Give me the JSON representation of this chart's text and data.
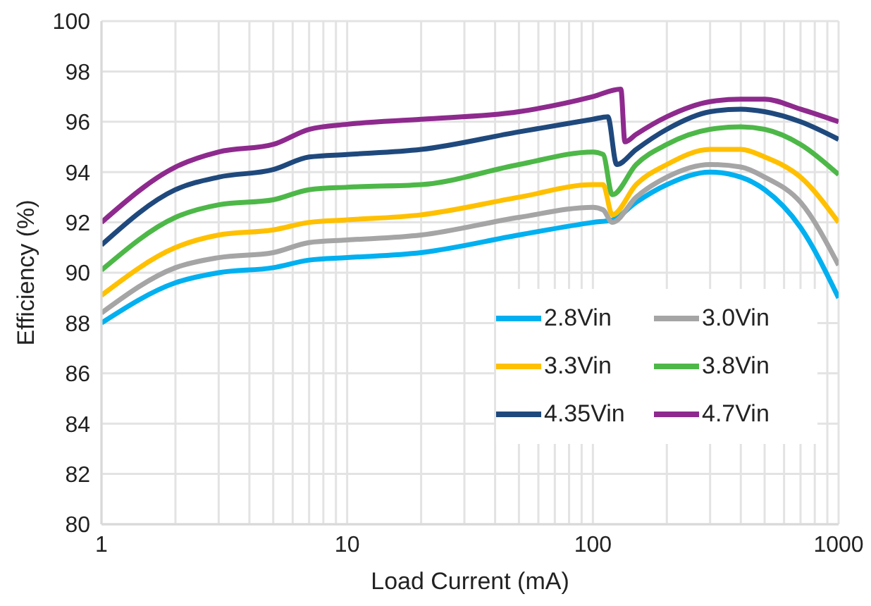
{
  "chart_data": {
    "type": "line",
    "xlabel": "Load Current (mA)",
    "ylabel": "Efficiency (%)",
    "log": "x",
    "grid": true,
    "legend": "bottom right",
    "marker": "none",
    "line_style": "solid",
    "xlim": [
      1,
      1000
    ],
    "ylim": [
      80,
      100
    ],
    "xticks": [
      1,
      {
        "value": 2,
        "label": null
      },
      {
        "value": 3,
        "label": null
      },
      {
        "value": 4,
        "label": null
      },
      {
        "value": 5,
        "label": null
      },
      {
        "value": 6,
        "label": null
      },
      {
        "value": 7,
        "label": null
      },
      {
        "value": 8,
        "label": null
      },
      {
        "value": 9,
        "label": null
      },
      10,
      {
        "value": 20,
        "label": null
      },
      {
        "value": 30,
        "label": null
      },
      {
        "value": 40,
        "label": null
      },
      {
        "value": 50,
        "label": null
      },
      {
        "value": 60,
        "label": null
      },
      {
        "value": 70,
        "label": null
      },
      {
        "value": 80,
        "label": null
      },
      {
        "value": 90,
        "label": null
      },
      100,
      {
        "value": 200,
        "label": null
      },
      {
        "value": 300,
        "label": null
      },
      {
        "value": 400,
        "label": null
      },
      {
        "value": 500,
        "label": null
      },
      {
        "value": 600,
        "label": null
      },
      {
        "value": 700,
        "label": null
      },
      {
        "value": 800,
        "label": null
      },
      {
        "value": 900,
        "label": null
      },
      1000
    ],
    "yticks": [
      80,
      82,
      84,
      86,
      88,
      90,
      92,
      94,
      96,
      98,
      100
    ],
    "series": [
      {
        "name": "2.8Vin",
        "color": "#00b0f0",
        "x": [
          1,
          2,
          3,
          5,
          7,
          10,
          20,
          50,
          100,
          120,
          150,
          200,
          300,
          400,
          500,
          700,
          1000
        ],
        "values": [
          88.0,
          89.6,
          90.0,
          90.2,
          90.5,
          90.6,
          90.8,
          91.5,
          92.0,
          92.1,
          92.8,
          93.5,
          94.0,
          93.8,
          93.3,
          91.8,
          89.0
        ]
      },
      {
        "name": "3.0Vin",
        "color": "#a5a5a5",
        "x": [
          1,
          2,
          3,
          5,
          7,
          10,
          20,
          50,
          100,
          110,
          120,
          150,
          200,
          300,
          400,
          500,
          700,
          1000
        ],
        "values": [
          88.4,
          90.2,
          90.6,
          90.8,
          91.2,
          91.3,
          91.5,
          92.2,
          92.6,
          92.5,
          92.0,
          93.0,
          93.8,
          94.3,
          94.2,
          93.8,
          92.8,
          90.3
        ]
      },
      {
        "name": "3.3Vin",
        "color": "#ffc000",
        "x": [
          1,
          2,
          3,
          5,
          7,
          10,
          20,
          50,
          100,
          110,
          120,
          150,
          200,
          300,
          400,
          500,
          700,
          1000
        ],
        "values": [
          89.1,
          91.0,
          91.5,
          91.7,
          92.0,
          92.1,
          92.3,
          93.0,
          93.5,
          93.5,
          92.3,
          93.5,
          94.3,
          94.9,
          94.9,
          94.6,
          93.8,
          92.0
        ]
      },
      {
        "name": "3.8Vin",
        "color": "#4db848",
        "x": [
          1,
          2,
          3,
          5,
          7,
          10,
          20,
          50,
          100,
          110,
          120,
          150,
          200,
          300,
          400,
          500,
          700,
          1000
        ],
        "values": [
          90.1,
          92.2,
          92.7,
          92.9,
          93.3,
          93.4,
          93.5,
          94.3,
          94.8,
          94.7,
          93.1,
          94.3,
          95.1,
          95.7,
          95.8,
          95.7,
          95.1,
          93.9
        ]
      },
      {
        "name": "4.35Vin",
        "color": "#1f497d",
        "x": [
          1,
          2,
          3,
          5,
          7,
          10,
          20,
          50,
          100,
          115,
          125,
          150,
          200,
          300,
          400,
          500,
          700,
          1000
        ],
        "values": [
          91.1,
          93.3,
          93.8,
          94.1,
          94.6,
          94.7,
          94.9,
          95.6,
          96.1,
          96.2,
          94.3,
          94.9,
          95.7,
          96.4,
          96.5,
          96.4,
          96.0,
          95.3
        ]
      },
      {
        "name": "4.7Vin",
        "color": "#8e2a8e",
        "x": [
          1,
          2,
          3,
          5,
          7,
          10,
          20,
          50,
          100,
          130,
          135,
          150,
          200,
          300,
          400,
          500,
          700,
          1000
        ],
        "values": [
          92.0,
          94.2,
          94.8,
          95.1,
          95.7,
          95.9,
          96.1,
          96.4,
          97.0,
          97.3,
          95.2,
          95.5,
          96.2,
          96.8,
          96.9,
          96.9,
          96.5,
          96.0
        ]
      }
    ]
  }
}
